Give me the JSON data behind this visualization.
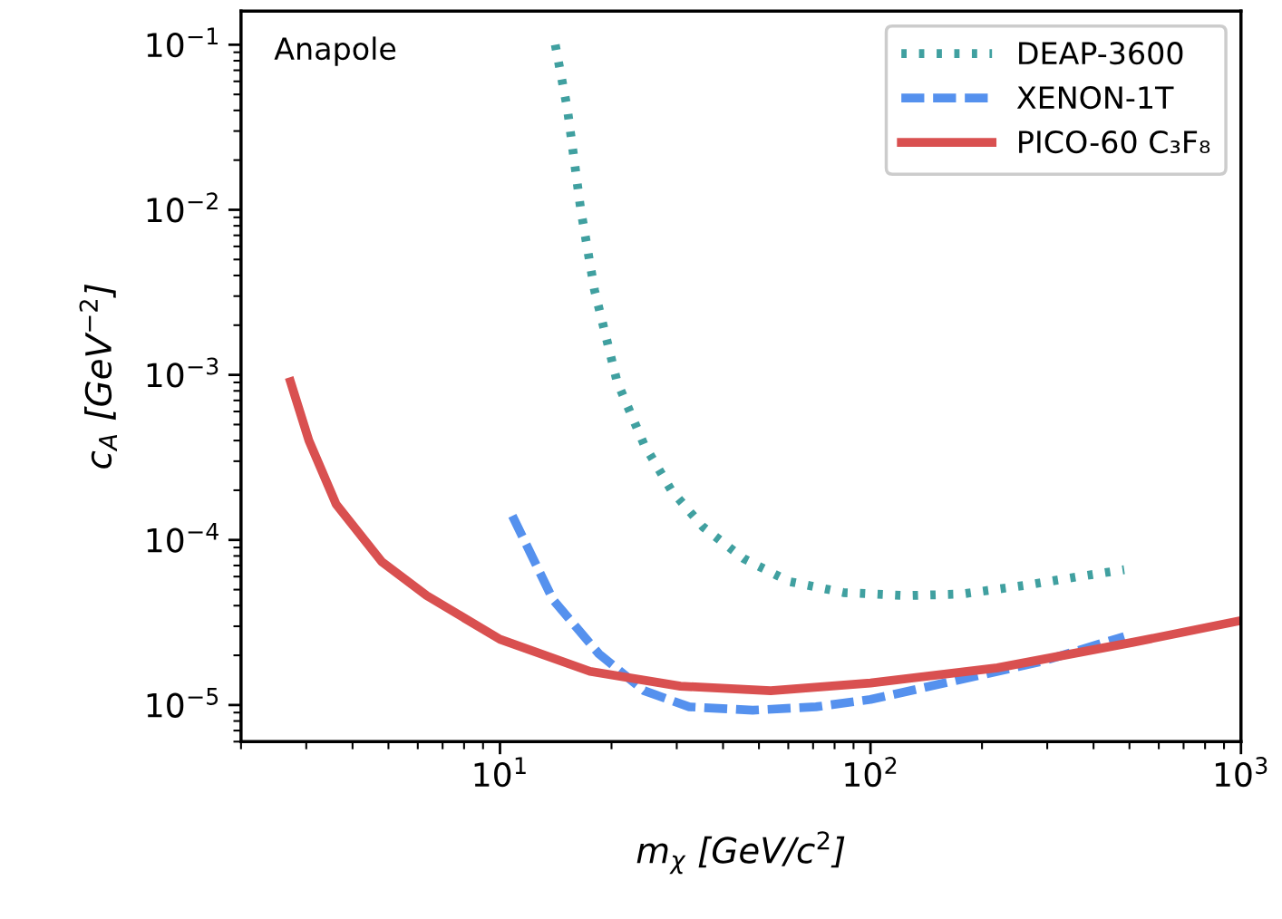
{
  "chart_data": {
    "type": "line",
    "xlabel": "m$_{χ}$ [GeV/c$^{2}$]",
    "ylabel": "c$_{A}$ [GeV$^{−2}$]",
    "annotations": [
      "Anapole"
    ],
    "log": "xy",
    "grid": false,
    "legend": "top right",
    "marker": "none",
    "xlim": [
      2,
      1000
    ],
    "ylim": [
      6e-06,
      0.16
    ],
    "xticks": [
      {
        "value": 10,
        "label": "10$^{1}$"
      },
      {
        "value": 100,
        "label": "10$^{2}$"
      },
      {
        "value": 1000,
        "label": "10$^{3}$"
      }
    ],
    "yticks": [
      {
        "value": 1e-05,
        "label": "10$^{−5}$"
      },
      {
        "value": 0.0001,
        "label": "10$^{−4}$"
      },
      {
        "value": 0.001,
        "label": "10$^{−3}$"
      },
      {
        "value": 0.01,
        "label": "10$^{−2}$"
      },
      {
        "value": 0.1,
        "label": "10$^{−1}$"
      }
    ],
    "series": [
      {
        "name": "DEAP-3600",
        "color": "#40a0a0",
        "line_style": "dotted",
        "x": [
          14.1,
          15.2,
          16.5,
          18.0,
          20.7,
          24.5,
          29.0,
          35.3,
          45.5,
          60.3,
          84.5,
          125,
          176,
          260,
          365,
          484
        ],
        "values": [
          0.1,
          0.041,
          0.0102,
          0.00325,
          0.00091,
          0.000377,
          0.0002,
          0.00012,
          7.7e-05,
          5.6e-05,
          4.8e-05,
          4.6e-05,
          4.7e-05,
          5.3e-05,
          6e-05,
          6.6e-05
        ]
      },
      {
        "name": "XENON-1T",
        "color": "#5591ee",
        "line_style": "dashed",
        "x": [
          10.8,
          13.9,
          18.5,
          24.5,
          32.4,
          48.1,
          71.3,
          100,
          166,
          291,
          484
        ],
        "values": [
          0.00014,
          4.35e-05,
          2.04e-05,
          1.22e-05,
          9.75e-06,
          9.3e-06,
          9.75e-06,
          1.08e-05,
          1.39e-05,
          1.84e-05,
          2.6e-05
        ]
      },
      {
        "name": "PICO-60 C₃F₈",
        "color": "#d95050",
        "line_style": "solid",
        "x": [
          2.72,
          3.05,
          3.61,
          4.79,
          6.34,
          10,
          17.5,
          30.7,
          53.8,
          100,
          220,
          512,
          1000
        ],
        "values": [
          0.00091,
          0.0004,
          0.000165,
          7.4e-05,
          4.6e-05,
          2.5e-05,
          1.6e-05,
          1.3e-05,
          1.22e-05,
          1.36e-05,
          1.68e-05,
          2.4e-05,
          3.25e-05
        ]
      }
    ]
  }
}
